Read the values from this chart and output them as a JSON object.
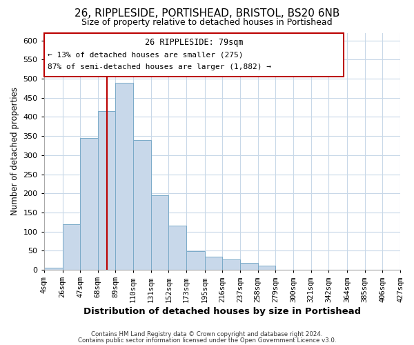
{
  "title_line1": "26, RIPPLESIDE, PORTISHEAD, BRISTOL, BS20 6NB",
  "title_line2": "Size of property relative to detached houses in Portishead",
  "xlabel": "Distribution of detached houses by size in Portishead",
  "ylabel": "Number of detached properties",
  "bar_color": "#c8d8ea",
  "bar_edge_color": "#7aaac8",
  "vline_x": 79,
  "vline_color": "#bb0000",
  "annotation_title": "26 RIPPLESIDE: 79sqm",
  "annotation_line1": "← 13% of detached houses are smaller (275)",
  "annotation_line2": "87% of semi-detached houses are larger (1,882) →",
  "bin_edges": [
    4,
    26,
    47,
    68,
    89,
    110,
    131,
    152,
    173,
    195,
    216,
    237,
    258,
    279,
    300,
    321,
    342,
    364,
    385,
    406,
    427
  ],
  "bin_heights": [
    5,
    120,
    345,
    415,
    490,
    340,
    195,
    115,
    48,
    35,
    27,
    18,
    10,
    0,
    0,
    0,
    0,
    0,
    0,
    0
  ],
  "ylim": [
    0,
    620
  ],
  "yticks": [
    0,
    50,
    100,
    150,
    200,
    250,
    300,
    350,
    400,
    450,
    500,
    550,
    600
  ],
  "footer_line1": "Contains HM Land Registry data © Crown copyright and database right 2024.",
  "footer_line2": "Contains public sector information licensed under the Open Government Licence v3.0.",
  "background_color": "#ffffff",
  "grid_color": "#c8d8e8"
}
